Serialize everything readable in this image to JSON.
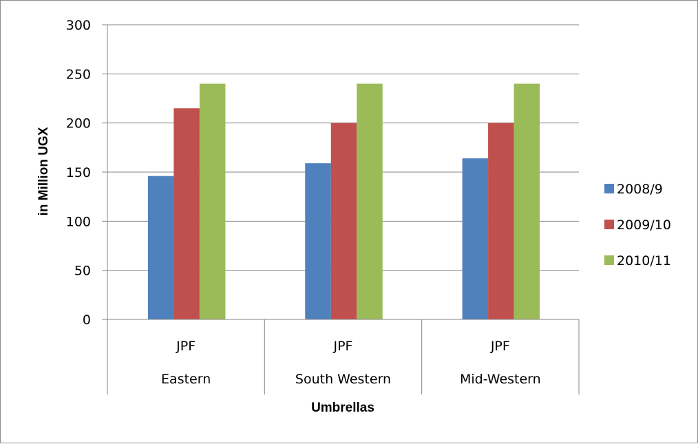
{
  "chart_data": {
    "type": "bar",
    "categories": [
      {
        "inner": "JPF",
        "outer": "Eastern"
      },
      {
        "inner": "JPF",
        "outer": "South Western"
      },
      {
        "inner": "JPF",
        "outer": "Mid-Western"
      }
    ],
    "series": [
      {
        "name": "2008/9",
        "color": "#4F81BD",
        "values": [
          146,
          159,
          164
        ]
      },
      {
        "name": "2009/10",
        "color": "#C0504D",
        "values": [
          215,
          200,
          200
        ]
      },
      {
        "name": "2010/11",
        "color": "#9BBB59",
        "values": [
          240,
          240,
          240
        ]
      }
    ],
    "title": "",
    "xlabel": "Umbrellas",
    "ylabel": "in Million UGX",
    "ylim": [
      0,
      300
    ],
    "yticks": [
      0,
      50,
      100,
      150,
      200,
      250,
      300
    ],
    "grid": true,
    "legend_position": "right"
  }
}
